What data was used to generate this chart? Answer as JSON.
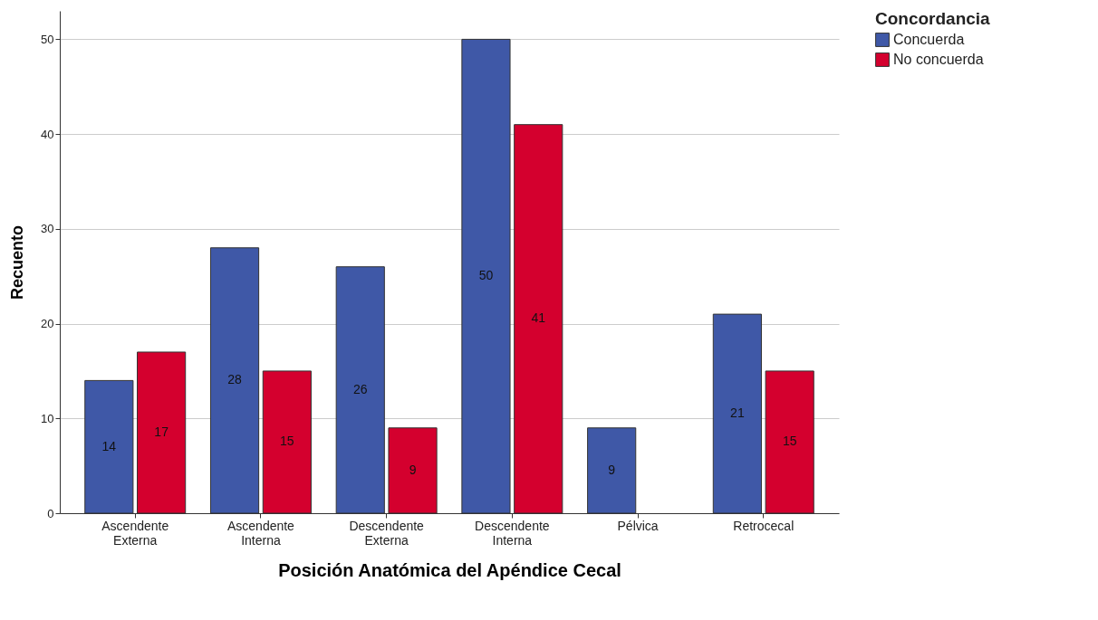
{
  "chart_data": {
    "type": "bar",
    "xlabel": "Posición Anatómica del Apéndice Cecal",
    "ylabel": "Recuento",
    "legend_title": "Concordancia",
    "categories": [
      "Ascendente Externa",
      "Ascendente Interna",
      "Descendente Externa",
      "Descendente Interna",
      "Pélvica",
      "Retrocecal"
    ],
    "series": [
      {
        "name": "Concuerda",
        "color": "#3f58a7",
        "values": [
          14,
          28,
          26,
          50,
          9,
          21
        ]
      },
      {
        "name": "No concuerda",
        "color": "#d4002e",
        "values": [
          17,
          15,
          9,
          41,
          null,
          15
        ]
      }
    ],
    "ylim": [
      0,
      53
    ],
    "yticks": [
      0,
      10,
      20,
      30,
      40,
      50
    ],
    "grid": "y",
    "legend": "right",
    "data_labels": true
  }
}
